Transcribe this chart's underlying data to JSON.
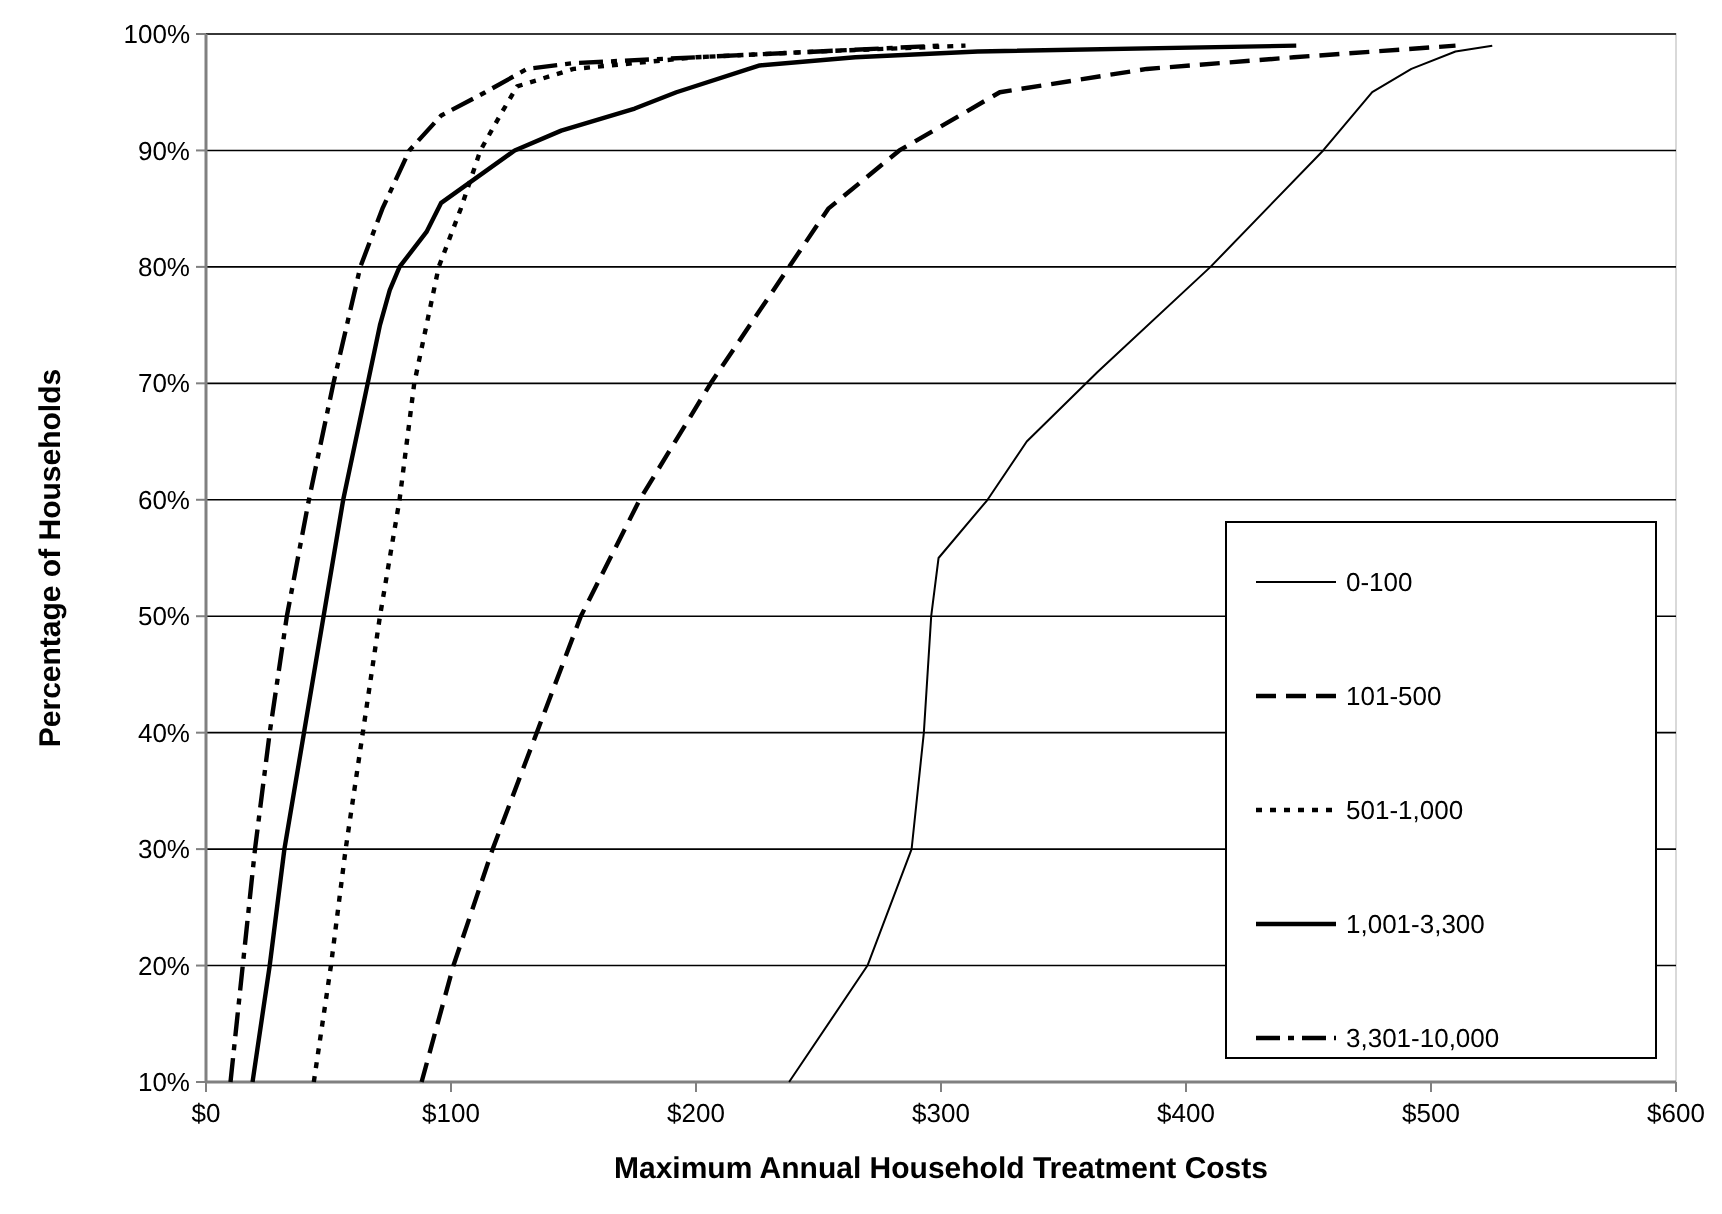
{
  "chart_data": {
    "type": "line",
    "xlabel": "Maximum Annual Household Treatment Costs",
    "ylabel": "Percentage of Households",
    "xlim": [
      0,
      600
    ],
    "xticks": [
      {
        "value": 0,
        "label": "$0"
      },
      {
        "value": 100,
        "label": "$100"
      },
      {
        "value": 200,
        "label": "$200"
      },
      {
        "value": 300,
        "label": "$300"
      },
      {
        "value": 400,
        "label": "$400"
      },
      {
        "value": 500,
        "label": "$500"
      },
      {
        "value": 600,
        "label": "$600"
      }
    ],
    "ylim": [
      10,
      100
    ],
    "yticks": [
      {
        "value": 10,
        "label": "10%"
      },
      {
        "value": 20,
        "label": "20%"
      },
      {
        "value": 30,
        "label": "30%"
      },
      {
        "value": 40,
        "label": "40%"
      },
      {
        "value": 50,
        "label": "50%"
      },
      {
        "value": 60,
        "label": "60%"
      },
      {
        "value": 70,
        "label": "70%"
      },
      {
        "value": 80,
        "label": "80%"
      },
      {
        "value": 90,
        "label": "90%"
      },
      {
        "value": 100,
        "label": "100%"
      }
    ],
    "grid": "y",
    "legend": "bottom right",
    "series": [
      {
        "name": "0-100",
        "color": "#000000",
        "line_style": "solid",
        "x": [
          238,
          270,
          288,
          293,
          296,
          299,
          319,
          335,
          364,
          410,
          456,
          476,
          492,
          510,
          525
        ],
        "values": [
          10,
          20,
          30,
          40,
          50,
          55,
          60,
          65,
          71,
          80,
          90,
          95,
          97,
          98.5,
          99
        ]
      },
      {
        "name": "101-500",
        "color": "#000000",
        "line_style": "dashed",
        "x": [
          88,
          101,
          117,
          135,
          153,
          177,
          206,
          238,
          254,
          283,
          324,
          384,
          444,
          510
        ],
        "values": [
          10,
          20,
          30,
          40,
          50,
          60,
          70,
          80,
          85,
          90,
          95,
          97,
          98,
          99
        ]
      },
      {
        "name": "501-1,000",
        "color": "#000000",
        "line_style": "dotted",
        "x": [
          44,
          51,
          57,
          64,
          71,
          79,
          85,
          95,
          104,
          112,
          120,
          127,
          150,
          200,
          250,
          310
        ],
        "values": [
          10,
          20,
          30,
          40,
          50,
          60,
          70,
          80,
          85,
          90,
          93,
          95.5,
          97,
          98,
          98.5,
          99
        ]
      },
      {
        "name": "1,001-3,300",
        "color": "#000000",
        "line_style": "solid",
        "x": [
          19,
          26,
          32,
          40,
          48,
          56,
          66,
          71,
          75,
          79,
          90,
          96,
          126,
          145,
          175,
          192,
          226,
          265,
          315,
          445
        ],
        "values": [
          10,
          20,
          30,
          40,
          50,
          60,
          70,
          75,
          78,
          80,
          83,
          85.5,
          90,
          91.7,
          93.6,
          95,
          97.3,
          98,
          98.5,
          99
        ]
      },
      {
        "name": "3,301-10,000",
        "color": "#000000",
        "line_style": "dashdot",
        "x": [
          10,
          15,
          20,
          26,
          33,
          42,
          52,
          63,
          72,
          83,
          96,
          114,
          131,
          150,
          200,
          300
        ],
        "values": [
          10,
          20,
          30,
          40,
          50,
          60,
          70,
          80,
          85,
          90,
          93,
          95,
          97,
          97.5,
          98,
          99
        ]
      }
    ]
  }
}
